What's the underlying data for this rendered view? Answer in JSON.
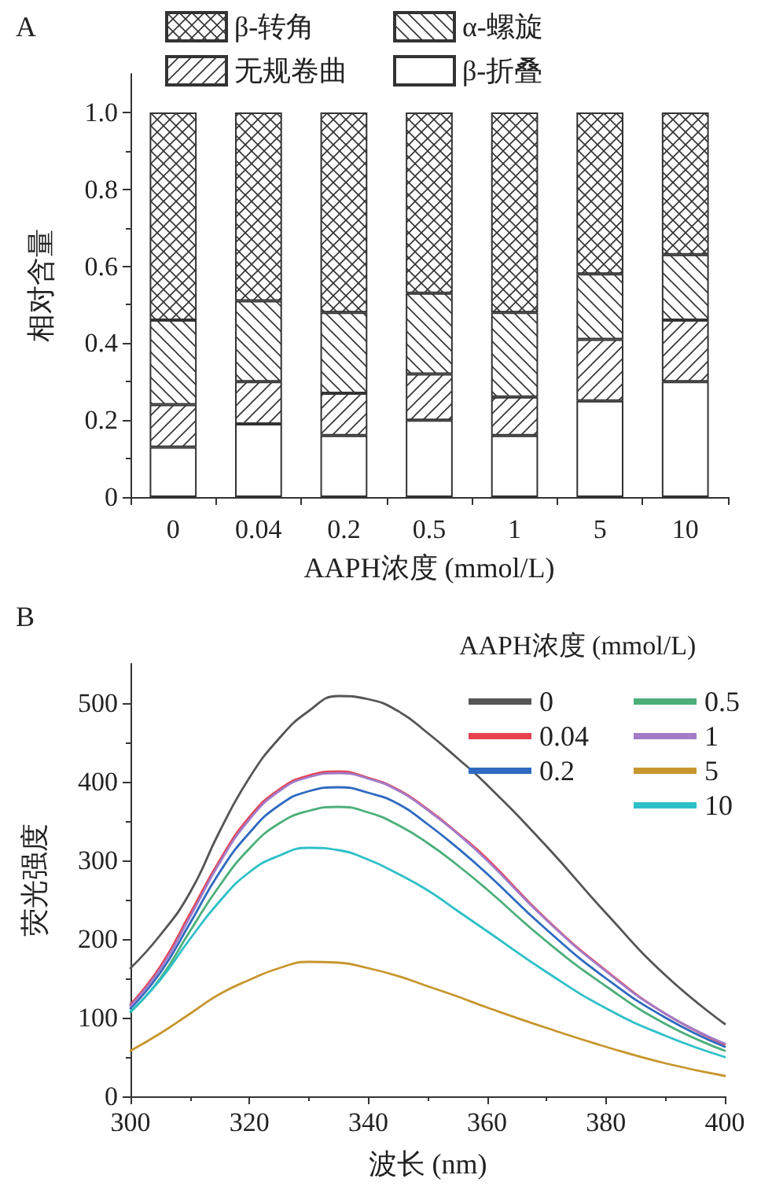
{
  "chart_data": [
    {
      "type": "bar",
      "stacked": true,
      "annotations": [
        "A"
      ],
      "xlabel": "AAPH浓度 (mmol/L)",
      "ylabel": "相对含量",
      "categories": [
        "0",
        "0.04",
        "0.2",
        "0.5",
        "1",
        "5",
        "10"
      ],
      "ylim": [
        0,
        1.1
      ],
      "yticks": [
        0,
        0.2,
        0.4,
        0.6,
        0.8,
        {
          "value": 1,
          "label": "1.0"
        }
      ],
      "legend": "top",
      "grid": false,
      "series": [
        {
          "name": "β-折叠",
          "color": "#ffffff",
          "values": [
            0.13,
            0.19,
            0.16,
            0.2,
            0.16,
            0.25,
            0.3
          ]
        },
        {
          "name": "无规卷曲",
          "color": "#333333",
          "values": [
            0.11,
            0.11,
            0.11,
            0.12,
            0.1,
            0.16,
            0.16
          ]
        },
        {
          "name": "α-螺旋",
          "color": "#333333",
          "values": [
            0.22,
            0.21,
            0.21,
            0.21,
            0.22,
            0.17,
            0.17
          ]
        },
        {
          "name": "β-转角",
          "color": "#333333",
          "values": [
            0.54,
            0.49,
            0.52,
            0.47,
            0.52,
            0.42,
            0.37
          ]
        }
      ]
    },
    {
      "type": "line",
      "annotations": [
        "B"
      ],
      "xlabel": "波长 (nm)",
      "ylabel": "荧光强度",
      "legend_title": "AAPH浓度 (mmol/L)",
      "legend": "top right",
      "grid": false,
      "marker": "none",
      "line_style": "solid",
      "x": [
        300,
        305,
        310,
        315,
        320,
        325,
        330,
        335,
        340,
        345,
        350,
        355,
        360,
        370,
        380,
        390,
        400
      ],
      "xlim": [
        300,
        400
      ],
      "xticks": [
        300,
        320,
        340,
        360,
        380,
        400
      ],
      "ylim": [
        0,
        550
      ],
      "yticks": [
        0,
        100,
        200,
        300,
        400,
        500
      ],
      "series": [
        {
          "name": "0",
          "color": "#555555",
          "values": [
            163,
            205,
            259,
            337,
            405,
            455,
            490,
            509,
            505,
            490,
            462,
            430,
            396,
            318,
            233,
            154,
            92
          ]
        },
        {
          "name": "0.04",
          "color": "#e8414e",
          "values": [
            117,
            165,
            232,
            300,
            355,
            390,
            408,
            413,
            405,
            390,
            365,
            335,
            302,
            225,
            160,
            105,
            66
          ]
        },
        {
          "name": "0.2",
          "color": "#2e6ac0",
          "values": [
            112,
            157,
            220,
            285,
            335,
            370,
            388,
            393,
            386,
            372,
            346,
            316,
            283,
            212,
            150,
            100,
            63
          ]
        },
        {
          "name": "0.5",
          "color": "#4caf7a",
          "values": [
            107,
            150,
            210,
            268,
            315,
            347,
            363,
            368,
            361,
            345,
            322,
            294,
            263,
            197,
            140,
            92,
            58
          ]
        },
        {
          "name": "1",
          "color": "#a37bc8",
          "values": [
            115,
            162,
            228,
            297,
            352,
            388,
            406,
            411,
            404,
            389,
            364,
            334,
            300,
            224,
            159,
            105,
            67
          ]
        },
        {
          "name": "5",
          "color": "#c8962e",
          "values": [
            58,
            80,
            105,
            130,
            148,
            163,
            171,
            170,
            163,
            153,
            140,
            127,
            113,
            87,
            63,
            42,
            26
          ]
        },
        {
          "name": "10",
          "color": "#2ec0c8",
          "values": [
            108,
            148,
            200,
            248,
            285,
            306,
            316,
            313,
            301,
            283,
            262,
            236,
            210,
            158,
            112,
            77,
            50
          ]
        }
      ]
    }
  ]
}
